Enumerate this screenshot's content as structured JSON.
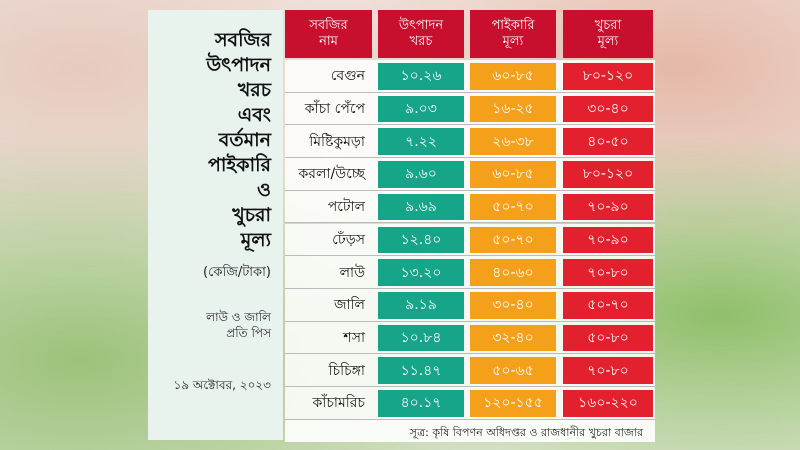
{
  "title_lines": [
    "সবজির",
    "উৎপাদন",
    "খরচ",
    "এবং",
    "বর্তমান",
    "পাইকারি",
    "ও",
    "খুচরা",
    "মূল্য"
  ],
  "unit": "(কেজি/টাকা)",
  "note_lines": [
    "লাউ ও জালি",
    "প্রতি পিস"
  ],
  "date": "১৯ অক্টোবর, ২০২৩",
  "table": {
    "header": [
      [
        "সবজির",
        "নাম"
      ],
      [
        "উৎপাদন",
        "খরচ"
      ],
      [
        "পাইকারি",
        "মূল্য"
      ],
      [
        "খুচরা",
        "মূল্য"
      ]
    ],
    "rows": [
      [
        "বেগুন",
        "১০.২৬",
        "৬০-৮৫",
        "৮০-১২০"
      ],
      [
        "কাঁচা পেঁপে",
        "৯.০৩",
        "১৬-২৫",
        "৩০-৪০"
      ],
      [
        "মিষ্টিকুমড়া",
        "৭.২২",
        "২৬-৩৮",
        "৪০-৫০"
      ],
      [
        "করলা/উচ্ছে",
        "৯.৬০",
        "৬০-৮৫",
        "৮০-১২০"
      ],
      [
        "পটোল",
        "৯.৬৯",
        "৫০-৭০",
        "৭০-৯০"
      ],
      [
        "ঢেঁড়স",
        "১২.৪০",
        "৫০-৭০",
        "৭০-৯০"
      ],
      [
        "লাউ",
        "১৩.২০",
        "৪০-৬০",
        "৭০-৮০"
      ],
      [
        "জালি",
        "৯.১৯",
        "৩০-৪০",
        "৫০-৭০"
      ],
      [
        "শসা",
        "১০.৮৪",
        "৩২-৪০",
        "৫০-৮০"
      ],
      [
        "চিচিঙ্গা",
        "১১.৪৭",
        "৫০-৬৫",
        "৭০-৮০"
      ],
      [
        "কাঁচামরিচ",
        "৪০.১৭",
        "১২০-১৫৫",
        "১৬০-২২০"
      ]
    ]
  },
  "source": "সূত্র: কৃষি বিপণন অধিদপ্তর ও রাজধানীর খুচরা বাজার"
}
